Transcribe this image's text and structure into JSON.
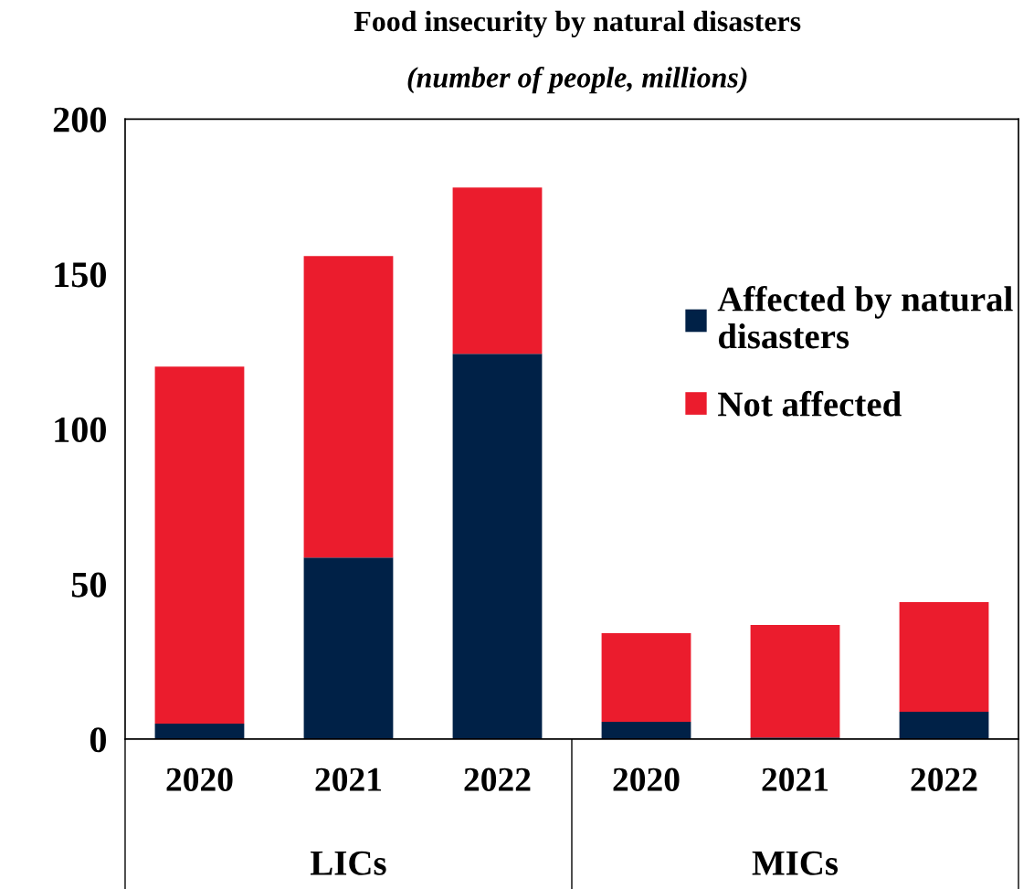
{
  "chart_data": {
    "type": "bar",
    "title": "Food insecurity by natural disasters",
    "subtitle": "(number of people, millions)",
    "categories": [
      "2020",
      "2021",
      "2022",
      "2020",
      "2021",
      "2022"
    ],
    "series": [
      {
        "name": "Affected by natural\ndisasters",
        "color": "#002147",
        "values": [
          5,
          58.6,
          124.3,
          5.6,
          0.5,
          8.8
        ]
      },
      {
        "name": "Not affected",
        "color": "#eb1c2d",
        "values": [
          115.2,
          97.2,
          53.6,
          28.6,
          36.3,
          35.4
        ]
      }
    ],
    "stacked": true,
    "ylim": [
      0,
      200
    ],
    "yticks": [
      0,
      50,
      100,
      150,
      200
    ],
    "grid": false,
    "legend": "right",
    "annotations": [
      "LICs",
      "MICs"
    ]
  }
}
